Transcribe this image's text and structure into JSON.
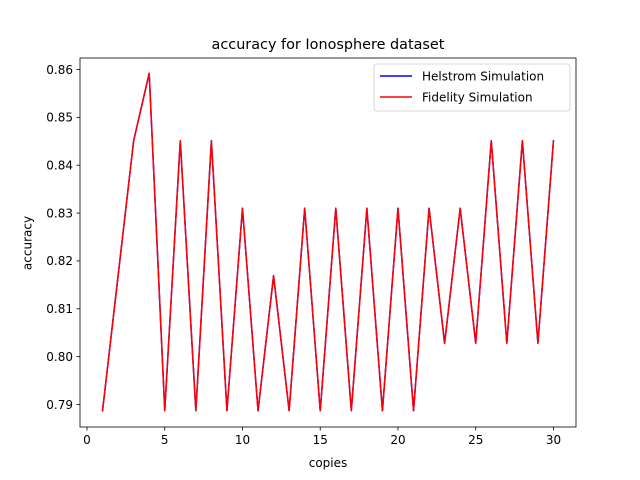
{
  "chart_data": {
    "type": "line",
    "title": "accuracy for Ionosphere dataset",
    "xlabel": "copies",
    "ylabel": "accuracy",
    "xlim": [
      -0.45,
      31.45
    ],
    "ylim": [
      0.7853,
      0.8624
    ],
    "xticks": [
      0,
      5,
      10,
      15,
      20,
      25,
      30
    ],
    "yticks": [
      0.79,
      0.8,
      0.81,
      0.82,
      0.83,
      0.84,
      0.85,
      0.86
    ],
    "ytick_labels": [
      "0.79",
      "0.80",
      "0.81",
      "0.82",
      "0.83",
      "0.84",
      "0.85",
      "0.86"
    ],
    "grid": false,
    "legend_position": "top-right",
    "x": [
      1,
      2,
      3,
      4,
      5,
      6,
      7,
      8,
      9,
      10,
      11,
      12,
      13,
      14,
      15,
      16,
      17,
      18,
      19,
      20,
      21,
      22,
      23,
      24,
      25,
      26,
      27,
      28,
      29,
      30
    ],
    "series": [
      {
        "name": "Helstrom Simulation",
        "color": "#0000ff",
        "values": [
          0.7887,
          0.8169,
          0.8451,
          0.8592,
          0.7887,
          0.8451,
          0.7887,
          0.8451,
          0.7887,
          0.831,
          0.7887,
          0.8169,
          0.7887,
          0.831,
          0.7887,
          0.831,
          0.7887,
          0.831,
          0.7887,
          0.831,
          0.7887,
          0.831,
          0.8028,
          0.831,
          0.8028,
          0.8451,
          0.8028,
          0.8451,
          0.8028,
          0.8451
        ]
      },
      {
        "name": "Fidelity Simulation",
        "color": "#ff0000",
        "values": [
          0.7887,
          0.8169,
          0.8451,
          0.8592,
          0.7887,
          0.8451,
          0.7887,
          0.8451,
          0.7887,
          0.831,
          0.7887,
          0.8169,
          0.7887,
          0.831,
          0.7887,
          0.831,
          0.7887,
          0.831,
          0.7887,
          0.831,
          0.7887,
          0.831,
          0.8028,
          0.831,
          0.8028,
          0.8451,
          0.8028,
          0.8451,
          0.8028,
          0.8451
        ]
      }
    ]
  }
}
